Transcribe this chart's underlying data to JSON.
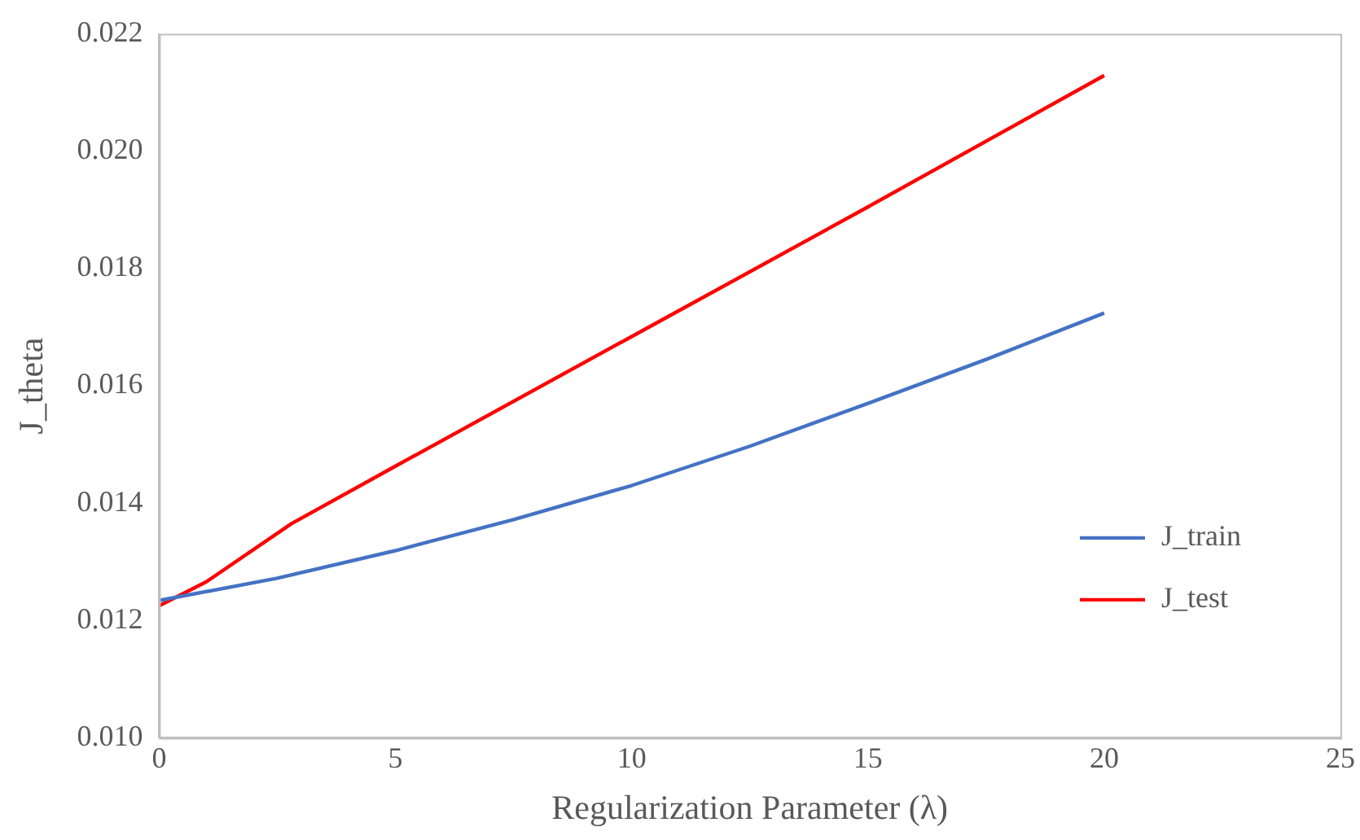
{
  "chart_data": {
    "type": "line",
    "xlabel": "Regularization Parameter (λ)",
    "ylabel": "J_theta",
    "xlim": [
      0,
      25
    ],
    "xticks": [
      0,
      5,
      10,
      15,
      20,
      25
    ],
    "ylim": [
      0.01,
      0.022
    ],
    "yticks": [
      {
        "value": 0.01,
        "label": "0.010"
      },
      {
        "value": 0.012,
        "label": "0.012"
      },
      {
        "value": 0.014,
        "label": "0.014"
      },
      {
        "value": 0.016,
        "label": "0.016"
      },
      {
        "value": 0.018,
        "label": "0.018"
      },
      {
        "value": 0.02,
        "label": "0.020"
      },
      {
        "value": 0.022,
        "label": "0.022"
      }
    ],
    "grid": false,
    "legend": "right",
    "marker": "none",
    "series": [
      {
        "name": "J_train",
        "color": "#4472c4",
        "x": [
          0,
          2.5,
          5,
          7.5,
          10,
          12.5,
          15,
          17.5,
          20
        ],
        "values": [
          0.01234,
          0.01272,
          0.01319,
          0.01372,
          0.0143,
          0.01497,
          0.0157,
          0.01645,
          0.01724
        ]
      },
      {
        "name": "J_test",
        "color": "#ff0000",
        "x": [
          0,
          1,
          2.8,
          5,
          10,
          15,
          20
        ],
        "values": [
          0.01225,
          0.01266,
          0.01365,
          0.01463,
          0.01684,
          0.01905,
          0.02129
        ]
      }
    ]
  }
}
